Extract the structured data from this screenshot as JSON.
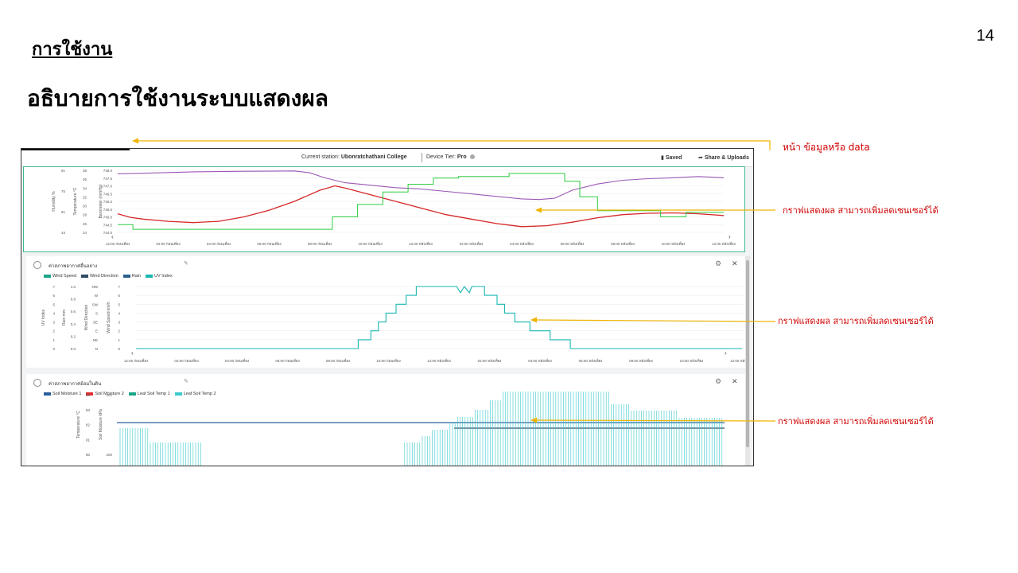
{
  "page_number": "14",
  "heading": "การใช้งาน",
  "subheading": "อธิบายการใช้งานระบบแสดงผล",
  "dashboard": {
    "current_station_label": "Current station:",
    "current_station": "Ubonratchathani College",
    "device_tier_label": "Device Tier:",
    "device_tier": "Pro",
    "saved_label": "Saved",
    "share_label": "Share & Uploads",
    "x_ticks": [
      "12:00 ก่อนเที่ยง",
      "02:00 ก่อนเที่ยง",
      "04:00 ก่อนเที่ยง",
      "06:00 ก่อนเที่ยง",
      "08:00 ก่อนเที่ยง",
      "10:00 ก่อนเที่ยง",
      "12:00 หลังเที่ยง",
      "02:00 หลังเที่ยง",
      "04:00 หลังเที่ยง",
      "06:00 หลังเที่ยง",
      "08:00 หลังเที่ยง",
      "10:00 หลังเที่ยง",
      "12:00 หลังเที่ยง"
    ],
    "panel1": {
      "axes": [
        {
          "label": "Humidity %",
          "ticks": [
            "91",
            "75",
            "61",
            "44"
          ]
        },
        {
          "label": "Temperature °C",
          "ticks": [
            "38",
            "36",
            "34",
            "32",
            "30",
            "28",
            "26",
            "24"
          ]
        },
        {
          "label": "Barometer (mmHg)",
          "ticks": [
            "748.0",
            "747.5",
            "747.0",
            "746.5",
            "746.0",
            "745.5",
            "745.0",
            "744.5",
            "744.0"
          ]
        }
      ]
    },
    "panel2": {
      "title": "ค่าสภาพอากาศอื่นอย่าง",
      "legend": [
        {
          "name": "Wind Speed",
          "color": "#1aa58a"
        },
        {
          "name": "Wind Direction",
          "color": "#2e4a63"
        },
        {
          "name": "Rain",
          "color": "#2b5f8c"
        },
        {
          "name": "UV Index",
          "color": "#19b6b2"
        }
      ],
      "axes": [
        {
          "label": "UV Index",
          "ticks": [
            "7",
            "6",
            "5",
            "4",
            "3",
            "2",
            "1",
            "0"
          ]
        },
        {
          "label": "Rain mm",
          "ticks": [
            "1.0",
            "0.8",
            "0.6",
            "0.4",
            "0.2",
            "0.0"
          ]
        },
        {
          "label": "Wind Direction",
          "ticks": [
            "NW",
            "W",
            "SW",
            "S",
            "SE",
            "E",
            "NE",
            "N"
          ]
        },
        {
          "label": "Wind Speed km/h",
          "ticks": [
            "7",
            "6",
            "5",
            "4",
            "3",
            "2",
            "1",
            "0"
          ]
        }
      ]
    },
    "panel3": {
      "title": "ค่าสภาพอากาศอ้อมในดิน",
      "legend": [
        {
          "name": "Soil Moisture 1",
          "color": "#2b5f9c"
        },
        {
          "name": "Soil Moisture 2",
          "color": "#e03030"
        },
        {
          "name": "Leaf Soil Temp 1",
          "color": "#1aa58a"
        },
        {
          "name": "Leaf Soil Temp 2",
          "color": "#3cc8cc"
        }
      ],
      "axes": [
        {
          "label": "Temperature °C",
          "ticks": [
            "84",
            "83",
            "82",
            "81",
            "80"
          ]
        },
        {
          "label": "Soil Moisture kPa",
          "ticks": [
            "201",
            "200"
          ]
        }
      ]
    }
  },
  "annotations": [
    {
      "text": "หน้า ข้อมูลหรือ data"
    },
    {
      "text": "กราฟแสดงผล สามารถเพิ่มลดเซนเซอร์ได้"
    },
    {
      "text": "กราฟแสดงผล สามารถเพิ่มลดเซนเซอร์ได้"
    },
    {
      "text": "กราฟแสดงผล สามารถเพิ่มลดเซนเซอร์ได้"
    }
  ],
  "colors": {
    "annotation_text": "#d00000",
    "arrow": "#f0b400",
    "humidity_line": "#9b59b6",
    "temperature_line": "#d62828",
    "barometer_line": "#2ecc40",
    "panel1_border": "#3fb98f"
  }
}
